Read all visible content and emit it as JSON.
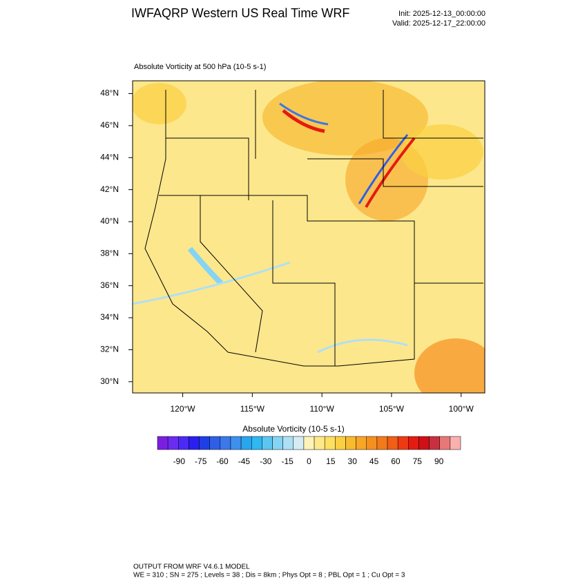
{
  "header": {
    "title": "IWFAQRP Western US Real Time WRF",
    "init": "Init: 2025-12-13_00:00:00",
    "valid": "Valid: 2025-12-17_22:00:00"
  },
  "map": {
    "subtitle": "Absolute Vorticity at 500 hPa   (10-5 s-1)",
    "xlim": [
      -123.6,
      -98.3
    ],
    "ylim": [
      29.3,
      48.8
    ],
    "xticks": [
      {
        "value": -120,
        "label": "120°W"
      },
      {
        "value": -115,
        "label": "115°W"
      },
      {
        "value": -110,
        "label": "110°W"
      },
      {
        "value": -105,
        "label": "105°W"
      },
      {
        "value": -100,
        "label": "100°W"
      }
    ],
    "yticks": [
      {
        "value": 48,
        "label": "48°N"
      },
      {
        "value": 46,
        "label": "46°N"
      },
      {
        "value": 44,
        "label": "44°N"
      },
      {
        "value": 42,
        "label": "42°N"
      },
      {
        "value": 40,
        "label": "40°N"
      },
      {
        "value": 38,
        "label": "38°N"
      },
      {
        "value": 36,
        "label": "36°N"
      },
      {
        "value": 34,
        "label": "34°N"
      },
      {
        "value": 32,
        "label": "32°N"
      },
      {
        "value": 30,
        "label": "30°N"
      }
    ]
  },
  "colorbar": {
    "title": "Absolute Vorticity  (10-5 s-1)",
    "range": [
      -105,
      105
    ],
    "ticks": [
      -90,
      -75,
      -60,
      -45,
      -30,
      -15,
      0,
      15,
      30,
      45,
      60,
      75,
      90
    ],
    "colors": [
      "#7a1fe0",
      "#6a2cf0",
      "#4b2af5",
      "#2a1ff0",
      "#1f3fe6",
      "#2f5fe6",
      "#3b78ea",
      "#3d90ee",
      "#2aa5f0",
      "#2fb8f2",
      "#5cc6f2",
      "#85d4f3",
      "#aee0f5",
      "#d5ecf5",
      "#fdf3b8",
      "#fde98a",
      "#fde060",
      "#fbd040",
      "#f8bb30",
      "#f7a628",
      "#f59020",
      "#f37a1a",
      "#f15e15",
      "#ee3a12",
      "#e51a10",
      "#d01018",
      "#c83040",
      "#e87878",
      "#fbb0b0"
    ]
  },
  "footer": {
    "line1": "OUTPUT FROM WRF V4.6.1 MODEL",
    "line2": "WE = 310 ; SN = 275 ; Levels = 38 ; Dis = 8km ; Phys Opt = 8 ; PBL Opt = 1 ; Cu Opt = 3"
  }
}
